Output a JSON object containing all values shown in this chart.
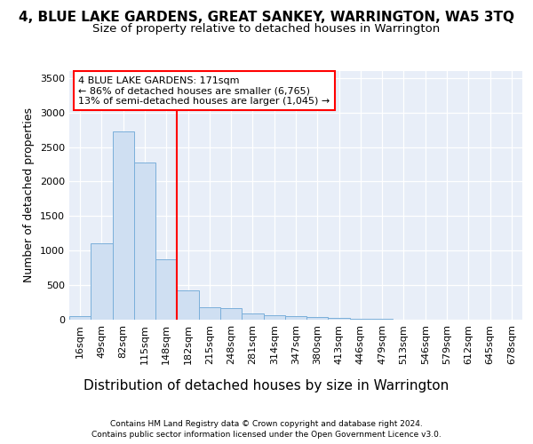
{
  "title": "4, BLUE LAKE GARDENS, GREAT SANKEY, WARRINGTON, WA5 3TQ",
  "subtitle": "Size of property relative to detached houses in Warrington",
  "xlabel": "Distribution of detached houses by size in Warrington",
  "ylabel": "Number of detached properties",
  "categories": [
    "16sqm",
    "49sqm",
    "82sqm",
    "115sqm",
    "148sqm",
    "182sqm",
    "215sqm",
    "248sqm",
    "281sqm",
    "314sqm",
    "347sqm",
    "380sqm",
    "413sqm",
    "446sqm",
    "479sqm",
    "513sqm",
    "546sqm",
    "579sqm",
    "612sqm",
    "645sqm",
    "678sqm"
  ],
  "values": [
    50,
    1110,
    2730,
    2280,
    880,
    430,
    175,
    165,
    95,
    60,
    50,
    35,
    30,
    10,
    18,
    0,
    0,
    0,
    0,
    0,
    0
  ],
  "bar_color": "#cfdff2",
  "bar_edgecolor": "#7aafda",
  "vline_color": "red",
  "vline_x": 4.5,
  "annotation_text": "4 BLUE LAKE GARDENS: 171sqm\n← 86% of detached houses are smaller (6,765)\n13% of semi-detached houses are larger (1,045) →",
  "ylim": [
    0,
    3600
  ],
  "yticks": [
    0,
    500,
    1000,
    1500,
    2000,
    2500,
    3000,
    3500
  ],
  "title_fontsize": 11,
  "subtitle_fontsize": 9.5,
  "xlabel_fontsize": 11,
  "ylabel_fontsize": 9,
  "tick_fontsize": 8,
  "footer1": "Contains HM Land Registry data © Crown copyright and database right 2024.",
  "footer2": "Contains public sector information licensed under the Open Government Licence v3.0.",
  "plot_bg_color": "#e8eef8"
}
